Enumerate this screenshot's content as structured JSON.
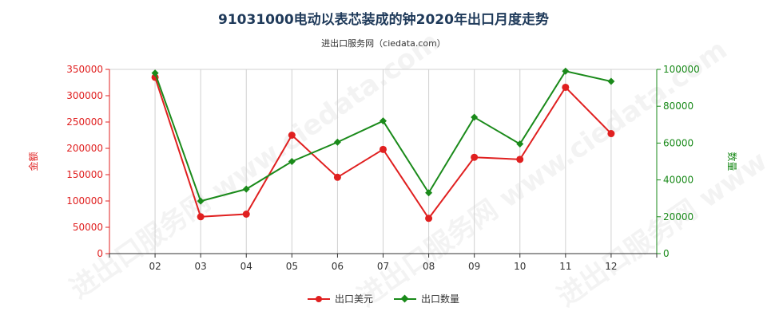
{
  "title": "91031000电动以表芯装成的钟2020年出口月度走势",
  "subtitle": "进出口服务网（ciedata.com）",
  "watermark": "进出口服务网 www.ciedata.com",
  "colors": {
    "usd": "#e02020",
    "qty": "#1a8a1a",
    "title": "#1f3a5a"
  },
  "legend": [
    {
      "label": "出口美元",
      "color": "#e02020",
      "marker": "circle"
    },
    {
      "label": "出口数量",
      "color": "#1a8a1a",
      "marker": "diamond"
    }
  ],
  "chart_data": {
    "type": "line",
    "categories": [
      "02",
      "03",
      "04",
      "05",
      "06",
      "07",
      "08",
      "09",
      "10",
      "11",
      "12"
    ],
    "x_axis_extra_slot_before_first": true,
    "y_left": {
      "label": "金额",
      "range": [
        0,
        350000
      ],
      "ticks": [
        0,
        50000,
        100000,
        150000,
        200000,
        250000,
        300000,
        350000
      ]
    },
    "y_right": {
      "label": "数量",
      "range": [
        0,
        100000
      ],
      "ticks": [
        0,
        20000,
        40000,
        60000,
        80000,
        100000
      ]
    },
    "series": [
      {
        "name": "出口美元",
        "axis": "left",
        "values": [
          335000,
          70000,
          75000,
          225000,
          145000,
          198000,
          67000,
          183000,
          179000,
          316000,
          228000
        ]
      },
      {
        "name": "出口数量",
        "axis": "right",
        "values": [
          98000,
          28500,
          35000,
          50000,
          60500,
          72000,
          33000,
          74000,
          59500,
          99000,
          93500
        ]
      }
    ],
    "grid": "vertical",
    "legend_position": "bottom"
  }
}
